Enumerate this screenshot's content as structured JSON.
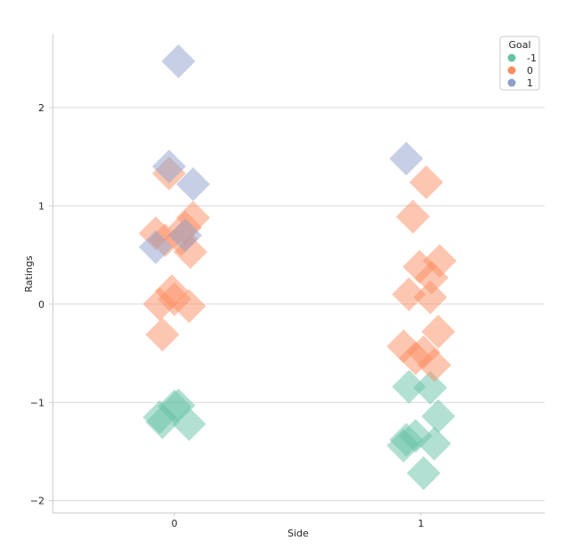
{
  "chart_data": {
    "type": "scatter",
    "xlabel": "Side",
    "ylabel": "Ratings",
    "categories": [
      "0",
      "1"
    ],
    "ylim": [
      -2.12,
      2.75
    ],
    "yticks": [
      -2,
      -1,
      0,
      1,
      2
    ],
    "ytick_labels": [
      "−2",
      "−1",
      "0",
      "1",
      "2"
    ],
    "grid": "horizontal",
    "legend_position": "top-right",
    "legend_title": "Goal",
    "series": [
      {
        "name": "-1",
        "color": "#66c2a5",
        "points": [
          {
            "x": 0,
            "y": -1.04
          },
          {
            "x": 0,
            "y": -1.22
          },
          {
            "x": 0,
            "y": -1.15
          },
          {
            "x": 0,
            "y": -1.2
          },
          {
            "x": 0,
            "y": -1.03
          },
          {
            "x": 1,
            "y": -0.84
          },
          {
            "x": 1,
            "y": -0.85
          },
          {
            "x": 1,
            "y": -1.14
          },
          {
            "x": 1,
            "y": -1.44
          },
          {
            "x": 1,
            "y": -1.72
          },
          {
            "x": 1,
            "y": -1.34
          },
          {
            "x": 1,
            "y": -1.42
          },
          {
            "x": 1,
            "y": -1.38
          }
        ]
      },
      {
        "name": "0",
        "color": "#fc8d62",
        "points": [
          {
            "x": 0,
            "y": 1.33
          },
          {
            "x": 0,
            "y": 0.88
          },
          {
            "x": 0,
            "y": 0.78
          },
          {
            "x": 0,
            "y": 0.72
          },
          {
            "x": 0,
            "y": 0.66
          },
          {
            "x": 0,
            "y": 0.65
          },
          {
            "x": 0,
            "y": 0.53
          },
          {
            "x": 0,
            "y": 0.13
          },
          {
            "x": 0,
            "y": 0.05
          },
          {
            "x": 0,
            "y": -0.02
          },
          {
            "x": 0,
            "y": 0.0
          },
          {
            "x": 0,
            "y": -0.31
          },
          {
            "x": 1,
            "y": 1.24
          },
          {
            "x": 1,
            "y": 0.89
          },
          {
            "x": 1,
            "y": 0.44
          },
          {
            "x": 1,
            "y": 0.38
          },
          {
            "x": 1,
            "y": 0.27
          },
          {
            "x": 1,
            "y": 0.1
          },
          {
            "x": 1,
            "y": 0.07
          },
          {
            "x": 1,
            "y": -0.28
          },
          {
            "x": 1,
            "y": -0.43
          },
          {
            "x": 1,
            "y": -0.49
          },
          {
            "x": 1,
            "y": -0.55
          },
          {
            "x": 1,
            "y": -0.62
          }
        ]
      },
      {
        "name": "1",
        "color": "#8da0cb",
        "points": [
          {
            "x": 0,
            "y": 2.47
          },
          {
            "x": 0,
            "y": 1.4
          },
          {
            "x": 0,
            "y": 1.22
          },
          {
            "x": 0,
            "y": 0.7
          },
          {
            "x": 0,
            "y": 0.58
          },
          {
            "x": 1,
            "y": 1.48
          }
        ]
      }
    ]
  },
  "jitter": {
    "0": [
      [
        0.0,
        0.3
      ],
      [
        0.55,
        -0.65
      ],
      [
        -0.55,
        0.1
      ],
      [
        -0.45,
        -0.25
      ],
      [
        0.15,
        0.55
      ],
      [
        -0.2,
        0.7
      ],
      [
        0.7,
        -0.45
      ],
      [
        0.4,
        0.4
      ],
      [
        -0.7,
        -0.6
      ],
      [
        0.25,
        -0.2
      ],
      [
        -0.35,
        0.45
      ],
      [
        0.6,
        0.15
      ],
      [
        -0.1,
        -0.5
      ]
    ],
    "1": [
      [
        -0.45,
        0.2
      ],
      [
        0.35,
        -0.55
      ],
      [
        0.65,
        0.3
      ],
      [
        -0.65,
        -0.35
      ],
      [
        0.1,
        0.65
      ],
      [
        -0.2,
        -0.15
      ],
      [
        0.5,
        0.55
      ],
      [
        -0.55,
        0.6
      ],
      [
        0.2,
        -0.35
      ],
      [
        -0.3,
        0.4
      ],
      [
        0.7,
        -0.1
      ],
      [
        -0.05,
        0.05
      ],
      [
        0.4,
        0.1
      ]
    ]
  }
}
